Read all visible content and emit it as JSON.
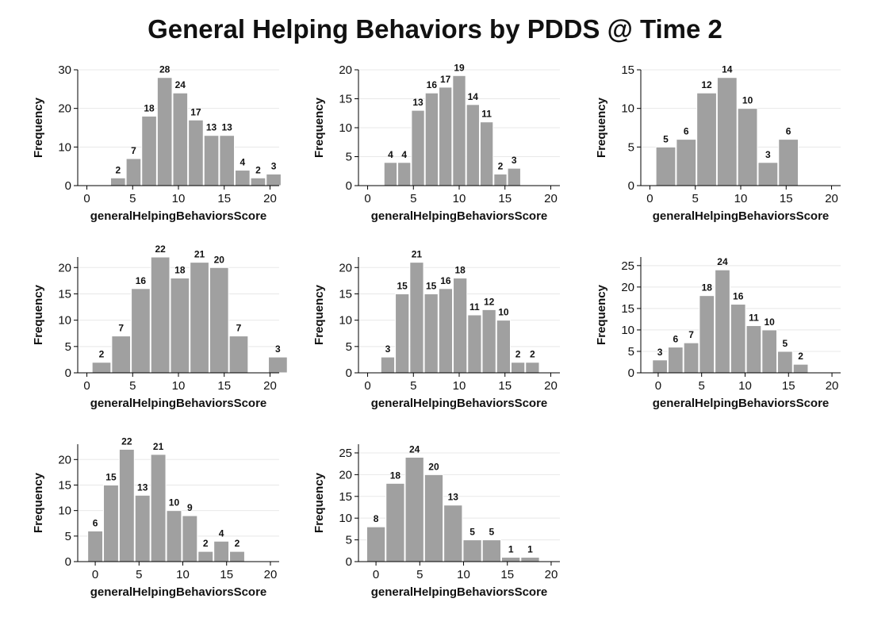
{
  "title": "General Helping Behaviors by PDDS @ Time 2",
  "colors": {
    "bar": "#a0a0a0",
    "grid": "#e8e8e8",
    "axis": "#000000"
  },
  "chart_data": [
    {
      "type": "bar",
      "xlabel": "generalHelpingBehaviorsScore",
      "ylabel": "Frequency",
      "xlim": [
        -1,
        21
      ],
      "ylim": [
        0,
        30
      ],
      "yticks": [
        0,
        10,
        20,
        30
      ],
      "xticks": [
        0,
        5,
        10,
        15,
        20
      ],
      "bin_width": 1.7,
      "bins": [
        {
          "x": 3.4,
          "count": 2
        },
        {
          "x": 5.1,
          "count": 7
        },
        {
          "x": 6.8,
          "count": 18
        },
        {
          "x": 8.5,
          "count": 28
        },
        {
          "x": 10.2,
          "count": 24
        },
        {
          "x": 11.9,
          "count": 17
        },
        {
          "x": 13.6,
          "count": 13
        },
        {
          "x": 15.3,
          "count": 13
        },
        {
          "x": 17.0,
          "count": 4
        },
        {
          "x": 18.7,
          "count": 2
        },
        {
          "x": 20.4,
          "count": 3
        }
      ]
    },
    {
      "type": "bar",
      "xlabel": "generalHelpingBehaviorsScore",
      "ylabel": "Frequency",
      "xlim": [
        -1,
        21
      ],
      "ylim": [
        0,
        20
      ],
      "yticks": [
        0,
        5,
        10,
        15,
        20
      ],
      "xticks": [
        0,
        5,
        10,
        15,
        20
      ],
      "bin_width": 1.5,
      "bins": [
        {
          "x": 2.5,
          "count": 4
        },
        {
          "x": 4.0,
          "count": 4
        },
        {
          "x": 5.5,
          "count": 13
        },
        {
          "x": 7.0,
          "count": 16
        },
        {
          "x": 8.5,
          "count": 17
        },
        {
          "x": 10.0,
          "count": 19
        },
        {
          "x": 11.5,
          "count": 14
        },
        {
          "x": 13.0,
          "count": 11
        },
        {
          "x": 14.5,
          "count": 2
        },
        {
          "x": 16.0,
          "count": 3
        }
      ]
    },
    {
      "type": "bar",
      "xlabel": "generalHelpingBehaviorsScore",
      "ylabel": "Frequency",
      "xlim": [
        -1,
        21
      ],
      "ylim": [
        0,
        15
      ],
      "yticks": [
        0,
        5,
        10,
        15
      ],
      "xticks": [
        0,
        5,
        10,
        15,
        20
      ],
      "bin_width": 2.25,
      "bins": [
        {
          "x": 1.75,
          "count": 5
        },
        {
          "x": 4.0,
          "count": 6
        },
        {
          "x": 6.25,
          "count": 12
        },
        {
          "x": 8.5,
          "count": 14
        },
        {
          "x": 10.75,
          "count": 10
        },
        {
          "x": 13.0,
          "count": 3
        },
        {
          "x": 15.25,
          "count": 6
        }
      ]
    },
    {
      "type": "bar",
      "xlabel": "generalHelpingBehaviorsScore",
      "ylabel": "Frequency",
      "xlim": [
        -1,
        21
      ],
      "ylim": [
        0,
        22
      ],
      "yticks": [
        0,
        5,
        10,
        15,
        20
      ],
      "xticks": [
        0,
        5,
        10,
        15,
        20
      ],
      "bin_width": 2.14,
      "bins": [
        {
          "x": 1.6,
          "count": 2
        },
        {
          "x": 3.74,
          "count": 7
        },
        {
          "x": 5.88,
          "count": 16
        },
        {
          "x": 8.02,
          "count": 22
        },
        {
          "x": 10.16,
          "count": 18
        },
        {
          "x": 12.3,
          "count": 21
        },
        {
          "x": 14.44,
          "count": 20
        },
        {
          "x": 16.58,
          "count": 7
        },
        {
          "x": 18.72,
          "count": 0
        },
        {
          "x": 20.86,
          "count": 3
        }
      ]
    },
    {
      "type": "bar",
      "xlabel": "generalHelpingBehaviorsScore",
      "ylabel": "Frequency",
      "xlim": [
        -1,
        21
      ],
      "ylim": [
        0,
        22
      ],
      "yticks": [
        0,
        5,
        10,
        15,
        20
      ],
      "xticks": [
        0,
        5,
        10,
        15,
        20
      ],
      "bin_width": 1.58,
      "bins": [
        {
          "x": 2.2,
          "count": 3
        },
        {
          "x": 3.78,
          "count": 15
        },
        {
          "x": 5.36,
          "count": 21
        },
        {
          "x": 6.94,
          "count": 15
        },
        {
          "x": 8.52,
          "count": 16
        },
        {
          "x": 10.1,
          "count": 18
        },
        {
          "x": 11.68,
          "count": 11
        },
        {
          "x": 13.26,
          "count": 12
        },
        {
          "x": 14.84,
          "count": 10
        },
        {
          "x": 16.42,
          "count": 2
        },
        {
          "x": 18.0,
          "count": 2
        }
      ]
    },
    {
      "type": "bar",
      "xlabel": "generalHelpingBehaviorsScore",
      "ylabel": "Frequency",
      "xlim": [
        -2,
        21
      ],
      "ylim": [
        0,
        27
      ],
      "yticks": [
        0,
        5,
        10,
        15,
        20,
        25
      ],
      "xticks": [
        0,
        5,
        10,
        15,
        20
      ],
      "bin_width": 1.8,
      "bins": [
        {
          "x": 0.2,
          "count": 3
        },
        {
          "x": 2.0,
          "count": 6
        },
        {
          "x": 3.8,
          "count": 7
        },
        {
          "x": 5.6,
          "count": 18
        },
        {
          "x": 7.4,
          "count": 24
        },
        {
          "x": 9.2,
          "count": 16
        },
        {
          "x": 11.0,
          "count": 11
        },
        {
          "x": 12.8,
          "count": 10
        },
        {
          "x": 14.6,
          "count": 5
        },
        {
          "x": 16.4,
          "count": 2
        }
      ]
    },
    {
      "type": "bar",
      "xlabel": "generalHelpingBehaviorsScore",
      "ylabel": "Frequency",
      "xlim": [
        -2,
        21
      ],
      "ylim": [
        0,
        23
      ],
      "yticks": [
        0,
        5,
        10,
        15,
        20
      ],
      "xticks": [
        0,
        5,
        10,
        15,
        20
      ],
      "bin_width": 1.8,
      "bins": [
        {
          "x": 0.0,
          "count": 6
        },
        {
          "x": 1.8,
          "count": 15
        },
        {
          "x": 3.6,
          "count": 22
        },
        {
          "x": 5.4,
          "count": 13
        },
        {
          "x": 7.2,
          "count": 21
        },
        {
          "x": 9.0,
          "count": 10
        },
        {
          "x": 10.8,
          "count": 9
        },
        {
          "x": 12.6,
          "count": 2
        },
        {
          "x": 14.4,
          "count": 4
        },
        {
          "x": 16.2,
          "count": 2
        }
      ]
    },
    {
      "type": "bar",
      "xlabel": "generalHelpingBehaviorsScore",
      "ylabel": "Frequency",
      "xlim": [
        -2,
        21
      ],
      "ylim": [
        0,
        27
      ],
      "yticks": [
        0,
        5,
        10,
        15,
        20,
        25
      ],
      "xticks": [
        0,
        5,
        10,
        15,
        20
      ],
      "bin_width": 2.2,
      "bins": [
        {
          "x": 0.0,
          "count": 8
        },
        {
          "x": 2.2,
          "count": 18
        },
        {
          "x": 4.4,
          "count": 24
        },
        {
          "x": 6.6,
          "count": 20
        },
        {
          "x": 8.8,
          "count": 13
        },
        {
          "x": 11.0,
          "count": 5
        },
        {
          "x": 13.2,
          "count": 5
        },
        {
          "x": 15.4,
          "count": 1
        },
        {
          "x": 17.6,
          "count": 1
        }
      ]
    }
  ]
}
